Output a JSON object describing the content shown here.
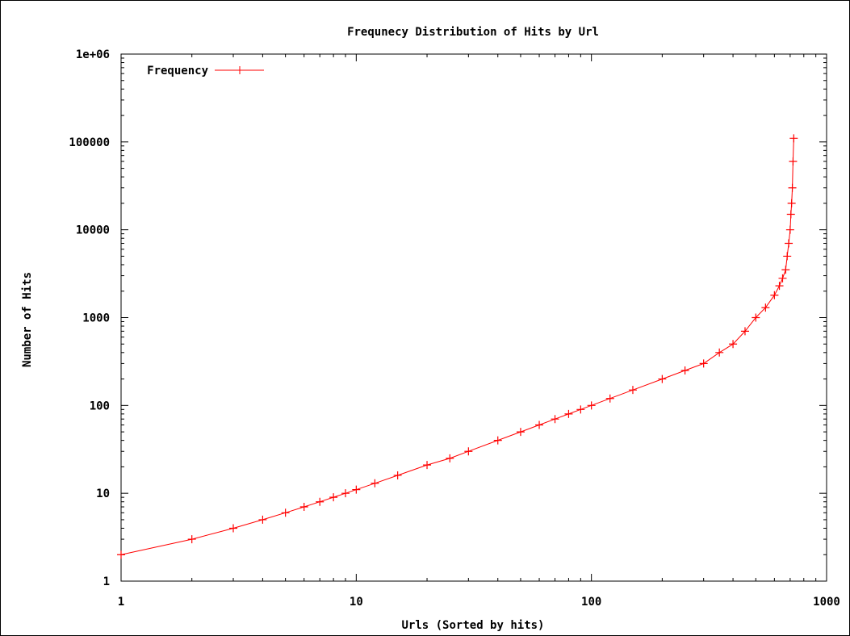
{
  "chart_data": {
    "type": "line",
    "title": "Frequnecy Distribution of Hits by Url",
    "xlabel": "Urls (Sorted by hits)",
    "ylabel": "Number of Hits",
    "xscale": "log",
    "yscale": "log",
    "xlim": [
      1,
      1000
    ],
    "ylim": [
      1,
      1000000
    ],
    "xticks": [
      "1",
      "10",
      "100",
      "1000"
    ],
    "yticks": [
      "1",
      "10",
      "100",
      "1000",
      "10000",
      "100000",
      "1e+06"
    ],
    "legend_position": "top-left",
    "grid": false,
    "series": [
      {
        "name": "Frequency",
        "color": "#ff0000",
        "marker": "plus",
        "x": [
          1,
          2,
          3,
          4,
          5,
          6,
          7,
          8,
          9,
          10,
          12,
          15,
          20,
          25,
          30,
          40,
          50,
          60,
          70,
          80,
          90,
          100,
          120,
          150,
          200,
          250,
          300,
          350,
          400,
          450,
          500,
          550,
          600,
          630,
          650,
          670,
          680,
          690,
          700,
          705,
          710,
          715,
          720,
          725
        ],
        "y": [
          2,
          3,
          4,
          5,
          6,
          7,
          8,
          9,
          10,
          11,
          13,
          16,
          21,
          25,
          30,
          40,
          50,
          60,
          70,
          80,
          90,
          100,
          120,
          150,
          200,
          250,
          300,
          400,
          500,
          700,
          1000,
          1300,
          1800,
          2300,
          2800,
          3500,
          5000,
          7000,
          10000,
          15000,
          20000,
          30000,
          60000,
          110000
        ]
      }
    ]
  }
}
